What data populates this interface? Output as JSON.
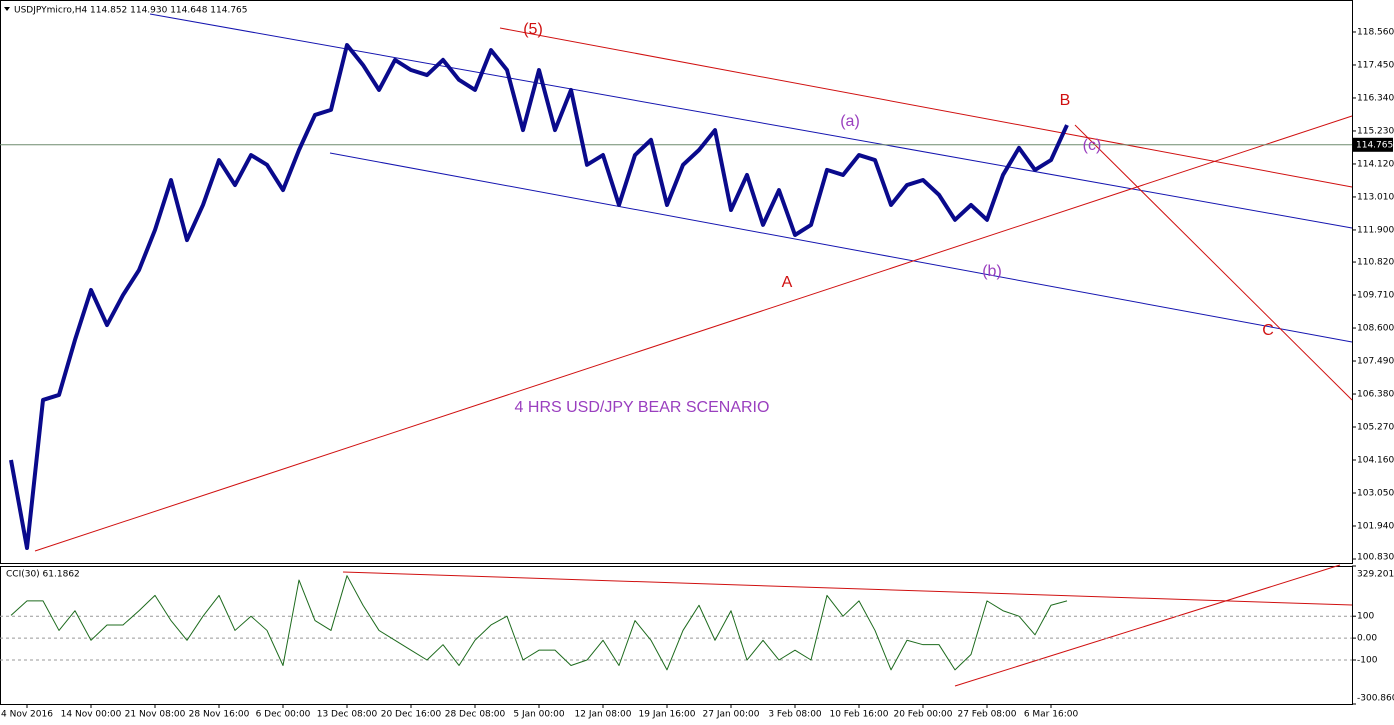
{
  "chart_data": [
    {
      "type": "line",
      "title": "USDJPYmicro,H4  114.852 114.930 114.648 114.765",
      "categories": [
        null,
        "4 Nov 2016",
        null,
        null,
        null,
        "14 Nov 00:00",
        null,
        null,
        null,
        "21 Nov 08:00",
        null,
        null,
        null,
        "28 Nov 16:00",
        null,
        null,
        null,
        "6 Dec 00:00",
        null,
        null,
        null,
        "13 Dec 08:00",
        null,
        null,
        null,
        "20 Dec 16:00",
        null,
        null,
        null,
        "28 Dec 08:00",
        null,
        null,
        null,
        "5 Jan 00:00",
        null,
        null,
        null,
        "12 Jan 08:00",
        null,
        null,
        null,
        "19 Jan 16:00",
        null,
        null,
        null,
        "27 Jan 00:00",
        null,
        null,
        null,
        "3 Feb 08:00",
        null,
        null,
        null,
        "10 Feb 16:00",
        null,
        null,
        null,
        "20 Feb 00:00",
        null,
        null,
        null,
        "27 Feb 08:00",
        null,
        null,
        null,
        "6 Mar 16:00",
        null
      ],
      "values": [
        104.16,
        101.2,
        106.18,
        106.35,
        108.2,
        109.88,
        108.7,
        109.71,
        110.55,
        111.9,
        113.58,
        111.56,
        112.74,
        114.25,
        113.41,
        114.42,
        114.09,
        113.24,
        114.59,
        115.77,
        115.94,
        118.12,
        117.45,
        116.61,
        117.62,
        117.28,
        117.11,
        117.62,
        116.95,
        116.61,
        117.95,
        117.28,
        115.26,
        117.28,
        115.26,
        116.61,
        114.09,
        114.42,
        112.74,
        114.42,
        114.93,
        112.74,
        114.09,
        114.59,
        115.26,
        112.57,
        113.75,
        112.07,
        113.24,
        111.73,
        112.07,
        113.92,
        113.75,
        114.42,
        114.25,
        112.74,
        113.41,
        113.58,
        113.08,
        112.24,
        112.74,
        112.24,
        113.75,
        114.66,
        113.92,
        114.25,
        115.43
      ],
      "color": "#0a0a8c",
      "ylim": [
        100.695,
        119.636
      ],
      "yticks": [
        {
          "value": 118.56,
          "label": "118.560"
        },
        {
          "value": 117.45,
          "label": "117.450"
        },
        {
          "value": 116.34,
          "label": "116.340"
        },
        {
          "value": 115.23,
          "label": "115.230"
        },
        {
          "value": 114.12,
          "label": "114.120"
        },
        {
          "value": 113.01,
          "label": "113.010"
        },
        {
          "value": 111.9,
          "label": "111.900"
        },
        {
          "value": 110.82,
          "label": "110.820"
        },
        {
          "value": 109.71,
          "label": "109.710"
        },
        {
          "value": 108.6,
          "label": "108.600"
        },
        {
          "value": 107.49,
          "label": "107.490"
        },
        {
          "value": 106.38,
          "label": "106.380"
        },
        {
          "value": 105.27,
          "label": "105.270"
        },
        {
          "value": 104.16,
          "label": "104.160"
        },
        {
          "value": 103.05,
          "label": "103.050"
        },
        {
          "value": 101.94,
          "label": "101.940"
        },
        {
          "value": 100.83,
          "label": "100.830"
        }
      ],
      "last_price": {
        "value": 114.765,
        "label": "114.765"
      },
      "annotations": [
        "(5)",
        "(a)",
        "(b)",
        "(c)",
        "A",
        "B",
        "C",
        "4 HRS USD/JPY BEAR SCENARIO"
      ]
    },
    {
      "type": "line",
      "title": "CCI(30) 61.1862",
      "values": [
        104,
        170,
        170,
        35,
        125,
        -10,
        60,
        60,
        125,
        195,
        80,
        -10,
        100,
        195,
        35,
        100,
        35,
        -125,
        265,
        80,
        35,
        285,
        150,
        35,
        -10,
        -55,
        -100,
        -30,
        -125,
        -10,
        60,
        100,
        -100,
        -55,
        -55,
        -125,
        -100,
        -10,
        -125,
        80,
        -10,
        -145,
        35,
        150,
        -10,
        125,
        -100,
        -10,
        -100,
        -55,
        -100,
        195,
        100,
        170,
        35,
        -145,
        -10,
        -30,
        -30,
        -145,
        -75,
        170,
        125,
        100,
        15,
        150,
        170
      ],
      "color": "#1e6b1e",
      "ylim": [
        -300.8604,
        329.2017
      ],
      "yticks": [
        329.2017,
        100,
        {
          "value": 0,
          "label": "0.00"
        },
        -100,
        -300.8604
      ]
    }
  ]
}
